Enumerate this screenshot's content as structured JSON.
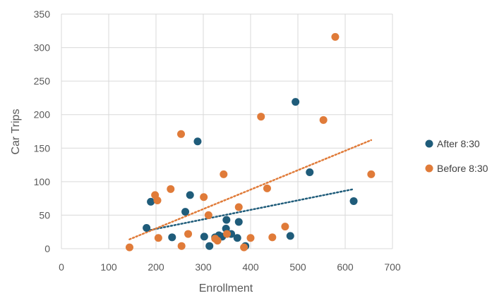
{
  "chart_data": {
    "type": "scatter",
    "title": "",
    "xlabel": "Enrollment",
    "ylabel": "Car Trips",
    "xlim": [
      0,
      700
    ],
    "ylim": [
      0,
      350
    ],
    "xticks": [
      0,
      100,
      200,
      300,
      400,
      500,
      600,
      700
    ],
    "yticks": [
      0,
      50,
      100,
      150,
      200,
      250,
      300,
      350
    ],
    "grid": true,
    "legend": "right",
    "series": [
      {
        "name": "After 8:30",
        "color": "#1F5C7A",
        "trendline": "linear",
        "points": [
          {
            "x": 180,
            "y": 31
          },
          {
            "x": 189,
            "y": 70
          },
          {
            "x": 234,
            "y": 17
          },
          {
            "x": 262,
            "y": 55
          },
          {
            "x": 272,
            "y": 80
          },
          {
            "x": 288,
            "y": 160
          },
          {
            "x": 302,
            "y": 18
          },
          {
            "x": 313,
            "y": 4
          },
          {
            "x": 325,
            "y": 17
          },
          {
            "x": 333,
            "y": 20
          },
          {
            "x": 340,
            "y": 18
          },
          {
            "x": 348,
            "y": 30
          },
          {
            "x": 349,
            "y": 43
          },
          {
            "x": 359,
            "y": 22
          },
          {
            "x": 372,
            "y": 16
          },
          {
            "x": 375,
            "y": 40
          },
          {
            "x": 389,
            "y": 4
          },
          {
            "x": 484,
            "y": 19
          },
          {
            "x": 495,
            "y": 219
          },
          {
            "x": 525,
            "y": 114
          },
          {
            "x": 618,
            "y": 71
          }
        ]
      },
      {
        "name": "Before 8:30",
        "color": "#E07B39",
        "trendline": "linear",
        "points": [
          {
            "x": 144,
            "y": 2
          },
          {
            "x": 198,
            "y": 80
          },
          {
            "x": 203,
            "y": 72
          },
          {
            "x": 205,
            "y": 16
          },
          {
            "x": 231,
            "y": 89
          },
          {
            "x": 253,
            "y": 171
          },
          {
            "x": 254,
            "y": 4
          },
          {
            "x": 268,
            "y": 22
          },
          {
            "x": 301,
            "y": 77
          },
          {
            "x": 311,
            "y": 50
          },
          {
            "x": 325,
            "y": 15
          },
          {
            "x": 330,
            "y": 12
          },
          {
            "x": 343,
            "y": 111
          },
          {
            "x": 350,
            "y": 22
          },
          {
            "x": 375,
            "y": 62
          },
          {
            "x": 386,
            "y": 2
          },
          {
            "x": 400,
            "y": 16
          },
          {
            "x": 422,
            "y": 197
          },
          {
            "x": 435,
            "y": 90
          },
          {
            "x": 446,
            "y": 17
          },
          {
            "x": 473,
            "y": 33
          },
          {
            "x": 554,
            "y": 192
          },
          {
            "x": 579,
            "y": 316
          },
          {
            "x": 655,
            "y": 111
          }
        ]
      }
    ]
  }
}
